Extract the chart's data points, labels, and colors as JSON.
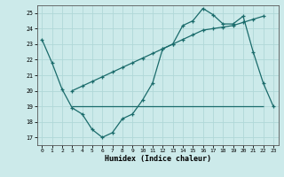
{
  "xlabel": "Humidex (Indice chaleur)",
  "ylabel": "",
  "bg_color": "#cceaea",
  "grid_color": "#b0d8d8",
  "line_color": "#1a6b6b",
  "xlim": [
    -0.5,
    23.5
  ],
  "ylim": [
    16.5,
    25.5
  ],
  "yticks": [
    17,
    18,
    19,
    20,
    21,
    22,
    23,
    24,
    25
  ],
  "xticks": [
    0,
    1,
    2,
    3,
    4,
    5,
    6,
    7,
    8,
    9,
    10,
    11,
    12,
    13,
    14,
    15,
    16,
    17,
    18,
    19,
    20,
    21,
    22,
    23
  ],
  "series1_x": [
    0,
    1,
    2,
    3,
    4,
    5,
    6,
    7,
    8,
    9,
    10,
    11,
    12,
    13,
    14,
    15,
    16,
    17,
    18,
    19,
    20,
    21,
    22,
    23
  ],
  "series1_y": [
    23.3,
    21.8,
    20.1,
    18.9,
    18.5,
    17.5,
    17.0,
    17.3,
    18.2,
    18.5,
    19.4,
    20.5,
    22.7,
    23.0,
    24.2,
    24.5,
    25.3,
    24.9,
    24.3,
    24.3,
    24.8,
    22.5,
    20.5,
    19.0
  ],
  "series2_x": [
    3,
    4,
    5,
    6,
    7,
    8,
    9,
    10,
    11,
    12,
    13,
    14,
    15,
    16,
    17,
    18,
    19,
    20,
    21,
    22
  ],
  "series2_y": [
    20.0,
    20.3,
    20.6,
    20.9,
    21.2,
    21.5,
    21.8,
    22.1,
    22.4,
    22.7,
    23.0,
    23.3,
    23.6,
    23.9,
    24.0,
    24.1,
    24.2,
    24.4,
    24.6,
    24.8
  ],
  "flat_line_y": 19.0,
  "flat_line_x_start": 3,
  "flat_line_x_end": 22
}
